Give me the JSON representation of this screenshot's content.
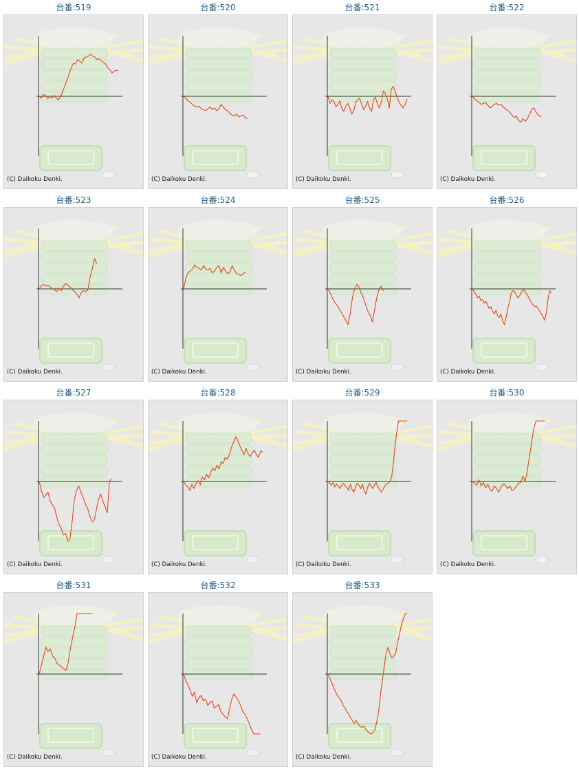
{
  "colors": {
    "line": "#e04818",
    "axis": "#333333",
    "label": "#1f5f86",
    "panel_bg": "#e7e7e7"
  },
  "copyright": "(C) Daikoku Denki.",
  "chart_data": [
    {
      "type": "line",
      "title": "台番:519",
      "y": [
        0,
        -2,
        2,
        1,
        -3,
        0,
        -2,
        1,
        -2,
        -4,
        0,
        5,
        12,
        18,
        25,
        32,
        37,
        36,
        41,
        39,
        37,
        43,
        44,
        45,
        47,
        45,
        44,
        41,
        42,
        40,
        38,
        36,
        32,
        30,
        26,
        28,
        29,
        29
      ]
    },
    {
      "type": "line",
      "title": "台番:520",
      "y": [
        0,
        -2,
        -5,
        -7,
        -9,
        -11,
        -12,
        -11,
        -14,
        -15,
        -16,
        -14,
        -12,
        -15,
        -13,
        -16,
        -14,
        -9,
        -12,
        -15,
        -16,
        -19,
        -21,
        -22,
        -20,
        -23,
        -22,
        -21,
        -24,
        -25
      ]
    },
    {
      "type": "line",
      "title": "台番:521",
      "y": [
        0,
        -8,
        -4,
        -6,
        -12,
        -9,
        -5,
        -14,
        -17,
        -11,
        -8,
        -13,
        -20,
        -16,
        -7,
        -4,
        -2,
        -9,
        -15,
        -11,
        -6,
        -13,
        -17,
        -4,
        -1,
        -9,
        -13,
        -6,
        6,
        3,
        -3,
        -13,
        8,
        11,
        5,
        -1,
        -7,
        -10,
        -13,
        -9,
        -3
      ]
    },
    {
      "type": "line",
      "title": "台番:522",
      "y": [
        0,
        -3,
        -5,
        -7,
        -9,
        -8,
        -7,
        -10,
        -13,
        -11,
        -9,
        -8,
        -10,
        -9,
        -12,
        -14,
        -16,
        -18,
        -21,
        -24,
        -22,
        -27,
        -29,
        -25,
        -28,
        -25,
        -20,
        -14,
        -13,
        -18,
        -21,
        -23
      ]
    },
    {
      "type": "line",
      "title": "台番:523",
      "y": [
        0,
        4,
        5,
        3,
        4,
        2,
        0,
        -1,
        -3,
        1,
        -2,
        3,
        6,
        4,
        2,
        -1,
        -3,
        -6,
        -10,
        -4,
        -2,
        -3,
        -1,
        13,
        23,
        34,
        28
      ]
    },
    {
      "type": "line",
      "title": "台番:524",
      "y": [
        0,
        12,
        18,
        20,
        22,
        27,
        24,
        23,
        21,
        26,
        22,
        21,
        23,
        18,
        20,
        24,
        26,
        18,
        24,
        20,
        17,
        19,
        26,
        21,
        17,
        16,
        15,
        17,
        19
      ]
    },
    {
      "type": "line",
      "title": "台番:525",
      "y": [
        0,
        -5,
        -10,
        -15,
        -18,
        -22,
        -26,
        -31,
        -35,
        -40,
        -28,
        -10,
        0,
        5,
        2,
        -5,
        -10,
        -18,
        -25,
        -30,
        -37,
        -23,
        -10,
        0,
        3,
        -2
      ]
    },
    {
      "type": "line",
      "title": "台番:526",
      "y": [
        0,
        -3,
        -6,
        -10,
        -8,
        -13,
        -12,
        -16,
        -14,
        -18,
        -22,
        -20,
        -25,
        -28,
        -24,
        -30,
        -32,
        -28,
        -36,
        -40,
        -32,
        -22,
        -15,
        -5,
        -2,
        -3,
        -6,
        -10,
        -8,
        -4,
        -1,
        -2,
        -5,
        -8,
        -12,
        -15,
        -18,
        -20,
        -19,
        -22,
        -25,
        -28,
        -32,
        -35,
        -26,
        -10,
        -2,
        -5
      ]
    },
    {
      "type": "line",
      "title": "台番:527",
      "y": [
        0,
        -10,
        -18,
        -15,
        -12,
        -22,
        -26,
        -30,
        -40,
        -48,
        -52,
        -60,
        -58,
        -70,
        -64,
        -45,
        -20,
        -10,
        -5,
        -12,
        -18,
        -25,
        -30,
        -38,
        -45,
        -44,
        -32,
        -20,
        -14,
        -22,
        -28,
        -35,
        0,
        3
      ]
    },
    {
      "type": "line",
      "title": "台番:528",
      "y": [
        0,
        -4,
        -6,
        -10,
        -3,
        -8,
        -2,
        1,
        -4,
        5,
        2,
        8,
        4,
        10,
        15,
        12,
        18,
        14,
        22,
        20,
        27,
        25,
        30,
        38,
        44,
        50,
        46,
        40,
        35,
        30,
        37,
        31,
        28,
        32,
        35,
        30,
        27,
        34,
        33
      ]
    },
    {
      "type": "line",
      "title": "台番:529",
      "y": [
        0,
        -2,
        -4,
        -1,
        -6,
        -3,
        -5,
        -8,
        -4,
        -2,
        -5,
        -7,
        -10,
        -3,
        -9,
        -12,
        -6,
        -2,
        -4,
        -8,
        -3,
        -10,
        -14,
        -7,
        -2,
        -5,
        -8,
        -4,
        -1,
        -6,
        -9,
        -12,
        -9,
        -5,
        -3,
        -2,
        0,
        5,
        20,
        40,
        55,
        70,
        82,
        90,
        95,
        102,
        110
      ]
    },
    {
      "type": "line",
      "title": "台番:530",
      "y": [
        0,
        -2,
        -4,
        2,
        -5,
        -1,
        -7,
        -3,
        -9,
        -11,
        -5,
        -8,
        -12,
        -6,
        -3,
        -4,
        -8,
        -5,
        -10,
        -9,
        -5,
        -2,
        -1,
        6,
        0,
        12,
        28,
        44,
        60,
        68,
        76,
        84,
        88,
        91
      ]
    },
    {
      "type": "line",
      "title": "台番:531",
      "y": [
        0,
        10,
        20,
        30,
        25,
        28,
        20,
        18,
        12,
        10,
        8,
        6,
        4,
        12,
        28,
        40,
        52,
        70,
        80,
        88,
        90,
        92,
        95,
        93,
        91
      ]
    },
    {
      "type": "line",
      "title": "台番:532",
      "y": [
        0,
        -8,
        -12,
        -18,
        -25,
        -20,
        -32,
        -26,
        -24,
        -30,
        -28,
        -35,
        -32,
        -30,
        -38,
        -36,
        -34,
        -42,
        -45,
        -48,
        -50,
        -38,
        -28,
        -22,
        -26,
        -30,
        -35,
        -42,
        -45,
        -50,
        -56,
        -62,
        -68,
        -72,
        -70,
        -74
      ]
    },
    {
      "type": "line",
      "title": "台番:533",
      "y": [
        0,
        -5,
        -10,
        -15,
        -20,
        -24,
        -27,
        -30,
        -35,
        -38,
        -42,
        -45,
        -49,
        -52,
        -55,
        -52,
        -56,
        -58,
        -60,
        -58,
        -62,
        -64,
        -66,
        -68,
        -65,
        -62,
        -52,
        -40,
        -20,
        -5,
        10,
        25,
        30,
        22,
        18,
        20,
        24,
        35,
        45,
        55,
        62,
        69,
        70
      ]
    }
  ]
}
